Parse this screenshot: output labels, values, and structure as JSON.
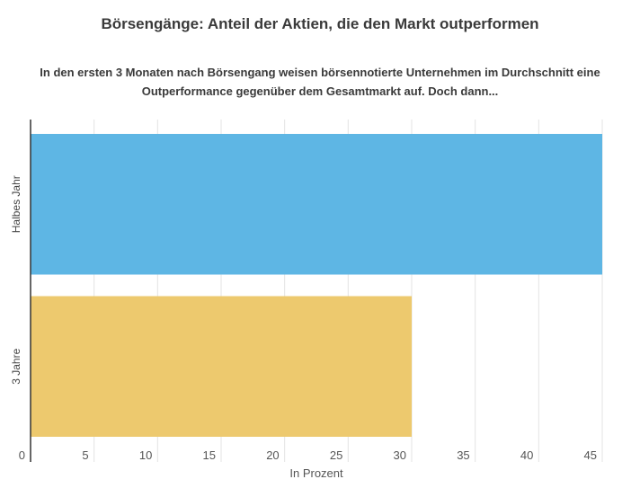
{
  "chart_data": {
    "type": "bar",
    "orientation": "horizontal",
    "title": "Börsengänge: Anteil der Aktien, die den Markt outperformen",
    "subtitle": "In den ersten 3 Monaten nach Börsengang weisen börsennotierte Unternehmen im Durchschnitt eine Outperformance gegenüber dem Gesamtmarkt auf. Doch dann...",
    "xlabel": "In Prozent",
    "ylabel": "",
    "categories": [
      "Halbes Jahr",
      "3 Jahre"
    ],
    "values": [
      45,
      30
    ],
    "colors": [
      "#5eb6e4",
      "#edc96e"
    ],
    "xlim": [
      0,
      45
    ],
    "xticks": [
      0,
      5,
      10,
      15,
      20,
      25,
      30,
      35,
      40,
      45
    ],
    "grid": true
  }
}
